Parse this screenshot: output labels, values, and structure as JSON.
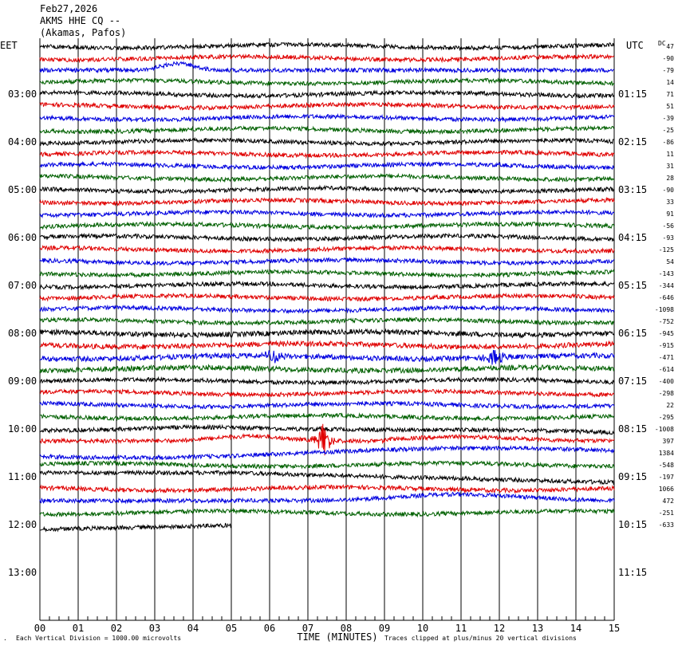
{
  "header": {
    "date": "Feb27,2026",
    "station": "AKMS HHE CQ --",
    "location": "(Akamas, Pafos)"
  },
  "left_label": "EET",
  "right_label": "UTC",
  "dc_label": "DC",
  "left_times": [
    "03:00",
    "04:00",
    "05:00",
    "06:00",
    "07:00",
    "08:00",
    "09:00",
    "10:00",
    "11:00",
    "12:00",
    "13:00"
  ],
  "right_times": [
    "01:15",
    "02:15",
    "03:15",
    "04:15",
    "05:15",
    "06:15",
    "07:15",
    "08:15",
    "09:15",
    "10:15",
    "11:15"
  ],
  "dc_values": [
    "47",
    "-90",
    "-79",
    "14",
    "71",
    "51",
    "-39",
    "-25",
    "-86",
    "11",
    "31",
    "28",
    "-90",
    "33",
    "91",
    "-56",
    "-93",
    "-125",
    "54",
    "-143",
    "-344",
    "-646",
    "-1098",
    "-752",
    "-945",
    "-915",
    "-471",
    "-614",
    "-400",
    "-298",
    "22",
    "-295",
    "-1008",
    "397",
    "1384",
    "-548",
    "-197",
    "1066",
    "472",
    "-251",
    "-633"
  ],
  "x_ticks": [
    "00",
    "01",
    "02",
    "03",
    "04",
    "05",
    "06",
    "07",
    "08",
    "09",
    "10",
    "11",
    "12",
    "13",
    "14",
    "15"
  ],
  "footer": {
    "left": "Each Vertical Division = 1000.00 microvolts",
    "center": "TIME (MINUTES)",
    "right": "Traces clipped at plus/minus 20 vertical divisions"
  },
  "chart_data": {
    "type": "line",
    "title": "AKMS HHE CQ --",
    "xlabel": "TIME (MINUTES)",
    "xlim": [
      0,
      15
    ],
    "trace_count": 41,
    "trace_colors": [
      "#000000",
      "#e00000",
      "#0000e0",
      "#006000"
    ],
    "events": [
      {
        "trace": 26,
        "minute": 6.1,
        "amplitude": "large"
      },
      {
        "trace": 26,
        "minute": 11.9,
        "amplitude": "large"
      },
      {
        "trace": 33,
        "minute": 7.4,
        "amplitude": "clipped"
      }
    ],
    "grid": true
  }
}
